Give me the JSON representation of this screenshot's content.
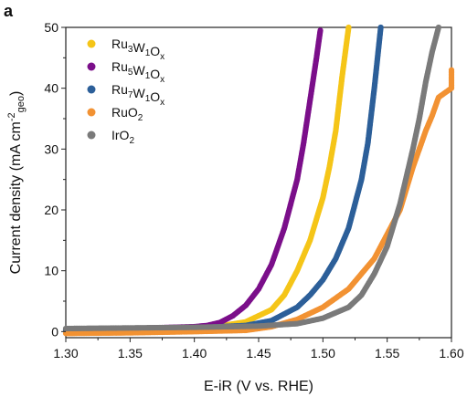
{
  "panel_label": "a",
  "chart_data": {
    "type": "scatter",
    "xlabel": "E-iR (V vs. RHE)",
    "ylabel_parts": {
      "main": "Current density (mA cm",
      "sup": "-2",
      "sub": "geo",
      "close": ")"
    },
    "xlim": [
      1.3,
      1.6
    ],
    "ylim": [
      0,
      50
    ],
    "xticks": [
      1.3,
      1.35,
      1.4,
      1.45,
      1.5,
      1.55,
      1.6
    ],
    "xtick_labels": [
      "1.30",
      "1.35",
      "1.40",
      "1.45",
      "1.50",
      "1.55",
      "1.60"
    ],
    "yticks": [
      0,
      10,
      20,
      30,
      40,
      50
    ],
    "ytick_labels": [
      "0",
      "10",
      "20",
      "30",
      "40",
      "50"
    ],
    "grid": false,
    "legend_position": "top-left",
    "series": [
      {
        "id": "ru3",
        "label_parts": [
          [
            "Ru",
            ""
          ],
          [
            "3",
            "sub"
          ],
          [
            "W",
            ""
          ],
          [
            "1",
            "sub"
          ],
          [
            "O",
            ""
          ],
          [
            "x",
            "sub"
          ]
        ],
        "color": "#f5c518",
        "points": [
          [
            1.3,
            0.3
          ],
          [
            1.35,
            0.5
          ],
          [
            1.4,
            0.7
          ],
          [
            1.42,
            0.9
          ],
          [
            1.44,
            1.6
          ],
          [
            1.46,
            3.6
          ],
          [
            1.47,
            6.0
          ],
          [
            1.48,
            10.0
          ],
          [
            1.49,
            15.0
          ],
          [
            1.5,
            22.0
          ],
          [
            1.505,
            27.0
          ],
          [
            1.51,
            33.0
          ],
          [
            1.515,
            42.0
          ],
          [
            1.52,
            50.0
          ]
        ]
      },
      {
        "id": "ru5",
        "label_parts": [
          [
            "Ru",
            ""
          ],
          [
            "5",
            "sub"
          ],
          [
            "W",
            ""
          ],
          [
            "1",
            "sub"
          ],
          [
            "O",
            ""
          ],
          [
            "x",
            "sub"
          ]
        ],
        "color": "#7b0f8a",
        "points": [
          [
            1.3,
            0.3
          ],
          [
            1.35,
            0.5
          ],
          [
            1.4,
            0.8
          ],
          [
            1.41,
            1.0
          ],
          [
            1.42,
            1.5
          ],
          [
            1.43,
            2.6
          ],
          [
            1.44,
            4.3
          ],
          [
            1.45,
            7.0
          ],
          [
            1.46,
            11.0
          ],
          [
            1.47,
            17.0
          ],
          [
            1.48,
            25.0
          ],
          [
            1.485,
            31.0
          ],
          [
            1.49,
            38.0
          ],
          [
            1.495,
            45.0
          ],
          [
            1.498,
            49.5
          ]
        ]
      },
      {
        "id": "ru7",
        "label_parts": [
          [
            "Ru",
            ""
          ],
          [
            "7",
            "sub"
          ],
          [
            "W",
            ""
          ],
          [
            "1",
            "sub"
          ],
          [
            "O",
            ""
          ],
          [
            "x",
            "sub"
          ]
        ],
        "color": "#2c5f99",
        "points": [
          [
            1.3,
            0.3
          ],
          [
            1.35,
            0.4
          ],
          [
            1.4,
            0.6
          ],
          [
            1.44,
            1.0
          ],
          [
            1.46,
            1.8
          ],
          [
            1.48,
            4.0
          ],
          [
            1.49,
            6.0
          ],
          [
            1.5,
            8.5
          ],
          [
            1.51,
            12.0
          ],
          [
            1.52,
            17.0
          ],
          [
            1.53,
            25.0
          ],
          [
            1.535,
            31.0
          ],
          [
            1.54,
            40.0
          ],
          [
            1.545,
            50.0
          ]
        ]
      },
      {
        "id": "ruo2",
        "label_parts": [
          [
            "RuO",
            ""
          ],
          [
            "2",
            "sub"
          ]
        ],
        "color": "#f29233",
        "points": [
          [
            1.3,
            -0.3
          ],
          [
            1.35,
            -0.2
          ],
          [
            1.4,
            0.0
          ],
          [
            1.44,
            0.2
          ],
          [
            1.46,
            0.8
          ],
          [
            1.48,
            2.0
          ],
          [
            1.5,
            4.0
          ],
          [
            1.52,
            7.0
          ],
          [
            1.54,
            12.0
          ],
          [
            1.56,
            20.0
          ],
          [
            1.57,
            27.0
          ],
          [
            1.58,
            33.0
          ],
          [
            1.585,
            35.5
          ],
          [
            1.59,
            38.5
          ],
          [
            1.6,
            40.0
          ],
          [
            1.6,
            43.0
          ]
        ]
      },
      {
        "id": "iro2",
        "label_parts": [
          [
            "IrO",
            ""
          ],
          [
            "2",
            "sub"
          ]
        ],
        "color": "#7a7a7a",
        "points": [
          [
            1.3,
            0.5
          ],
          [
            1.35,
            0.6
          ],
          [
            1.4,
            0.7
          ],
          [
            1.45,
            0.9
          ],
          [
            1.48,
            1.3
          ],
          [
            1.5,
            2.2
          ],
          [
            1.52,
            4.0
          ],
          [
            1.53,
            6.0
          ],
          [
            1.54,
            9.5
          ],
          [
            1.55,
            14.0
          ],
          [
            1.56,
            21.0
          ],
          [
            1.57,
            30.0
          ],
          [
            1.575,
            35.0
          ],
          [
            1.58,
            41.0
          ],
          [
            1.585,
            46.0
          ],
          [
            1.59,
            50.0
          ]
        ]
      }
    ]
  }
}
